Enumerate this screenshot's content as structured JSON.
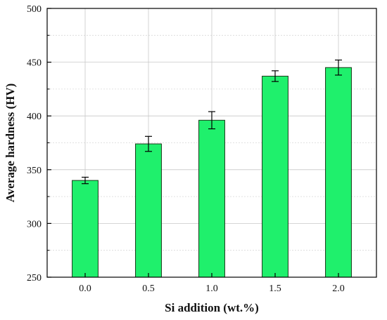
{
  "chart_data": {
    "type": "bar",
    "title": "",
    "xlabel": "Si addition (wt.%)",
    "ylabel": "Average hardness (HV)",
    "categories": [
      "0.0",
      "0.5",
      "1.0",
      "1.5",
      "2.0"
    ],
    "values": [
      340,
      374,
      396,
      437,
      445
    ],
    "errors": [
      3,
      7,
      8,
      5,
      7
    ],
    "ylim": [
      250,
      500
    ],
    "yticks": [
      250,
      300,
      350,
      400,
      450,
      500
    ],
    "grid": true,
    "bar_color": "#1ff06c",
    "bar_edge_color": "#1a3a1a"
  }
}
